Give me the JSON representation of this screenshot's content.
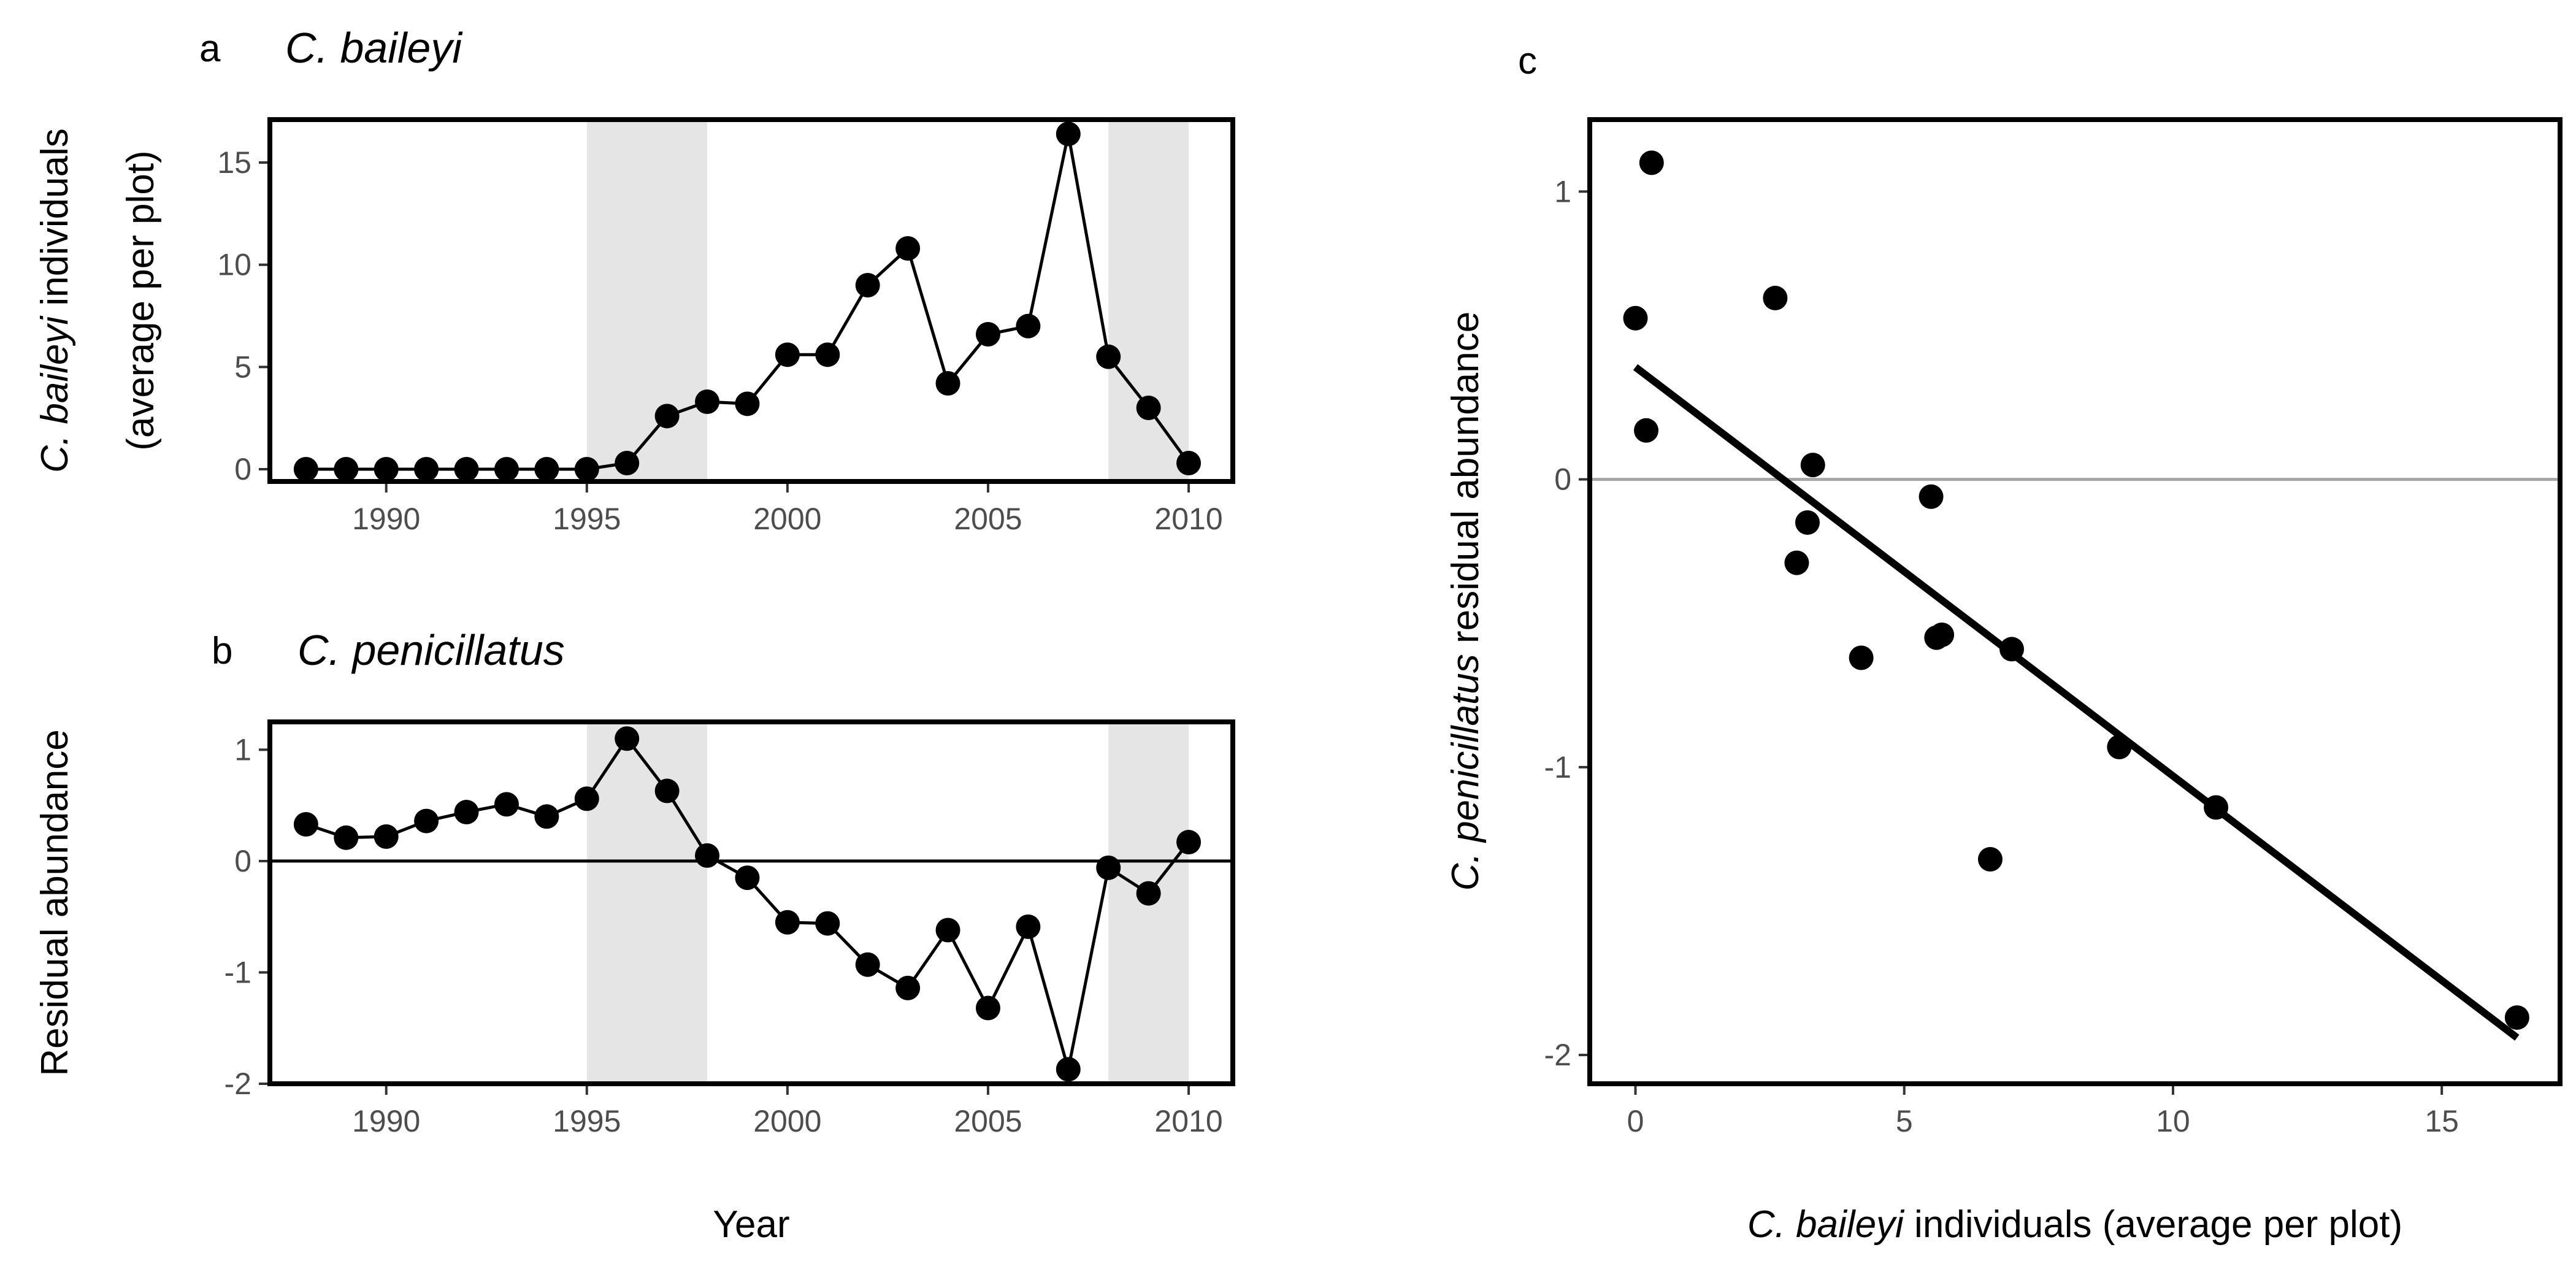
{
  "colors": {
    "point": "#000000",
    "line": "#000000",
    "shade": "#e5e5e5",
    "zero_line_b": "#000000",
    "zero_line_c": "#a6a6a6",
    "tick_text": "#4d4d4d"
  },
  "chart_data": [
    {
      "panel": "a",
      "type": "line",
      "title": "C. baileyi",
      "ylabel_italic": "C. baileyi",
      "ylabel_rest": " individuals",
      "ylabel_line2": "(average per plot)",
      "xlim": [
        1987.1,
        2011.1
      ],
      "ylim": [
        -0.6,
        17.1
      ],
      "xticks": [
        1990,
        1995,
        2000,
        2005,
        2010
      ],
      "yticks": [
        0,
        5,
        10,
        15
      ],
      "shaded_periods": [
        [
          1995,
          1998
        ],
        [
          2008,
          2010
        ]
      ],
      "x": [
        1988,
        1989,
        1990,
        1991,
        1992,
        1993,
        1994,
        1995,
        1996,
        1997,
        1998,
        1999,
        2000,
        2001,
        2002,
        2003,
        2004,
        2005,
        2006,
        2007,
        2008,
        2009,
        2010
      ],
      "y": [
        0,
        0,
        0,
        0,
        0,
        0,
        0,
        0,
        0.3,
        2.6,
        3.3,
        3.2,
        5.6,
        5.6,
        9.0,
        10.8,
        4.2,
        6.6,
        7.0,
        16.4,
        5.5,
        3.0,
        0.3
      ]
    },
    {
      "panel": "b",
      "type": "line",
      "title": "C. penicillatus",
      "ylabel": "Residual abundance",
      "xlabel": "Year",
      "xlim": [
        1987.1,
        2011.1
      ],
      "ylim": [
        -2.0,
        1.25
      ],
      "xticks": [
        1990,
        1995,
        2000,
        2005,
        2010
      ],
      "yticks": [
        1,
        0,
        -1,
        -2
      ],
      "shaded_periods": [
        [
          1995,
          1998
        ],
        [
          2008,
          2010
        ]
      ],
      "hline": 0,
      "x": [
        1988,
        1989,
        1990,
        1991,
        1992,
        1993,
        1994,
        1995,
        1996,
        1997,
        1998,
        1999,
        2000,
        2001,
        2002,
        2003,
        2004,
        2005,
        2006,
        2007,
        2008,
        2009,
        2010
      ],
      "y": [
        0.33,
        0.21,
        0.22,
        0.36,
        0.44,
        0.51,
        0.4,
        0.56,
        1.1,
        0.63,
        0.05,
        -0.15,
        -0.55,
        -0.56,
        -0.93,
        -1.14,
        -0.62,
        -1.32,
        -0.59,
        -1.87,
        -0.06,
        -0.29,
        0.17
      ]
    },
    {
      "panel": "c",
      "type": "scatter",
      "ylabel_italic": "C. penicillatus",
      "ylabel_rest": " residual abundance",
      "xlabel_italic": "C. baileyi",
      "xlabel_rest": " individuals (average per plot)",
      "xlim": [
        -0.85,
        17.2
      ],
      "ylim": [
        -2.1,
        1.25
      ],
      "xticks": [
        0,
        5,
        10,
        15
      ],
      "yticks": [
        1,
        0,
        -1,
        -2
      ],
      "hline": 0,
      "fit_line": {
        "x": [
          0,
          16.4
        ],
        "y": [
          0.39,
          -1.94
        ]
      },
      "x": [
        0,
        0.3,
        0.2,
        2.6,
        3.3,
        3.2,
        3.0,
        5.5,
        5.6,
        5.7,
        4.2,
        7.0,
        9.0,
        10.8,
        6.6,
        16.4
      ],
      "y": [
        0.56,
        1.1,
        0.17,
        0.63,
        0.05,
        -0.15,
        -0.29,
        -0.06,
        -0.55,
        -0.54,
        -0.62,
        -0.59,
        -0.93,
        -1.14,
        -1.32,
        -1.87
      ]
    }
  ]
}
